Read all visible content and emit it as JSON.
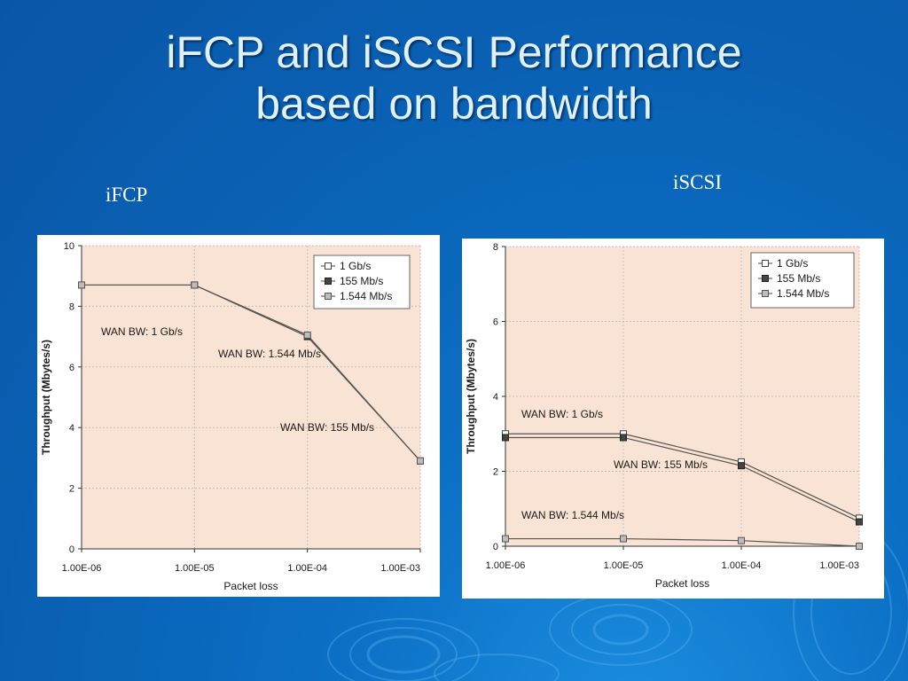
{
  "slide": {
    "title_line1": "iFCP and iSCSI Performance",
    "title_line2": "based on bandwidth"
  },
  "colors": {
    "background": "#0a5fb2",
    "plot_area": "#f9e3d4",
    "series_line": "#555555"
  },
  "chart_data": [
    {
      "type": "line",
      "caption": "iFCP",
      "xlabel": "Packet loss",
      "ylabel": "Throughput (Mbytes/s)",
      "x_scale": "log",
      "categories": [
        "1.00E-06",
        "1.00E-05",
        "1.00E-04",
        "1.00E-03"
      ],
      "ylim": [
        0,
        10
      ],
      "yticks": [
        "0",
        "2",
        "4",
        "6",
        "8",
        "10"
      ],
      "grid": true,
      "legend_position": "top-right",
      "series": [
        {
          "name": "1 Gb/s",
          "marker": "open-square",
          "values": [
            8.7,
            8.7,
            null,
            null
          ]
        },
        {
          "name": "155 Mb/s",
          "marker": "filled-square",
          "values": [
            null,
            8.7,
            7.0,
            2.9
          ]
        },
        {
          "name": "1.544 Mb/s",
          "marker": "gray-square",
          "values": [
            8.7,
            8.7,
            7.05,
            2.9
          ]
        }
      ],
      "annotations": [
        "WAN BW: 1 Gb/s",
        "WAN BW: 1.544 Mb/s",
        "WAN BW: 155 Mb/s"
      ]
    },
    {
      "type": "line",
      "caption": "iSCSI",
      "xlabel": "Packet loss",
      "ylabel": "Throughput (Mbytes/s)",
      "x_scale": "log",
      "categories": [
        "1.00E-06",
        "1.00E-05",
        "1.00E-04",
        "1.00E-03"
      ],
      "ylim": [
        0,
        8
      ],
      "yticks": [
        "0",
        "2",
        "4",
        "6",
        "8"
      ],
      "grid": true,
      "legend_position": "top-right",
      "series": [
        {
          "name": "1 Gb/s",
          "marker": "open-square",
          "values": [
            3.0,
            3.0,
            2.25,
            0.75
          ]
        },
        {
          "name": "155 Mb/s",
          "marker": "filled-square",
          "values": [
            2.9,
            2.9,
            2.15,
            0.65
          ]
        },
        {
          "name": "1.544 Mb/s",
          "marker": "gray-square",
          "values": [
            0.2,
            0.2,
            0.15,
            0.0
          ]
        }
      ],
      "annotations": [
        "WAN BW: 1 Gb/s",
        "WAN BW: 155 Mb/s",
        "WAN BW: 1.544 Mb/s"
      ]
    }
  ]
}
